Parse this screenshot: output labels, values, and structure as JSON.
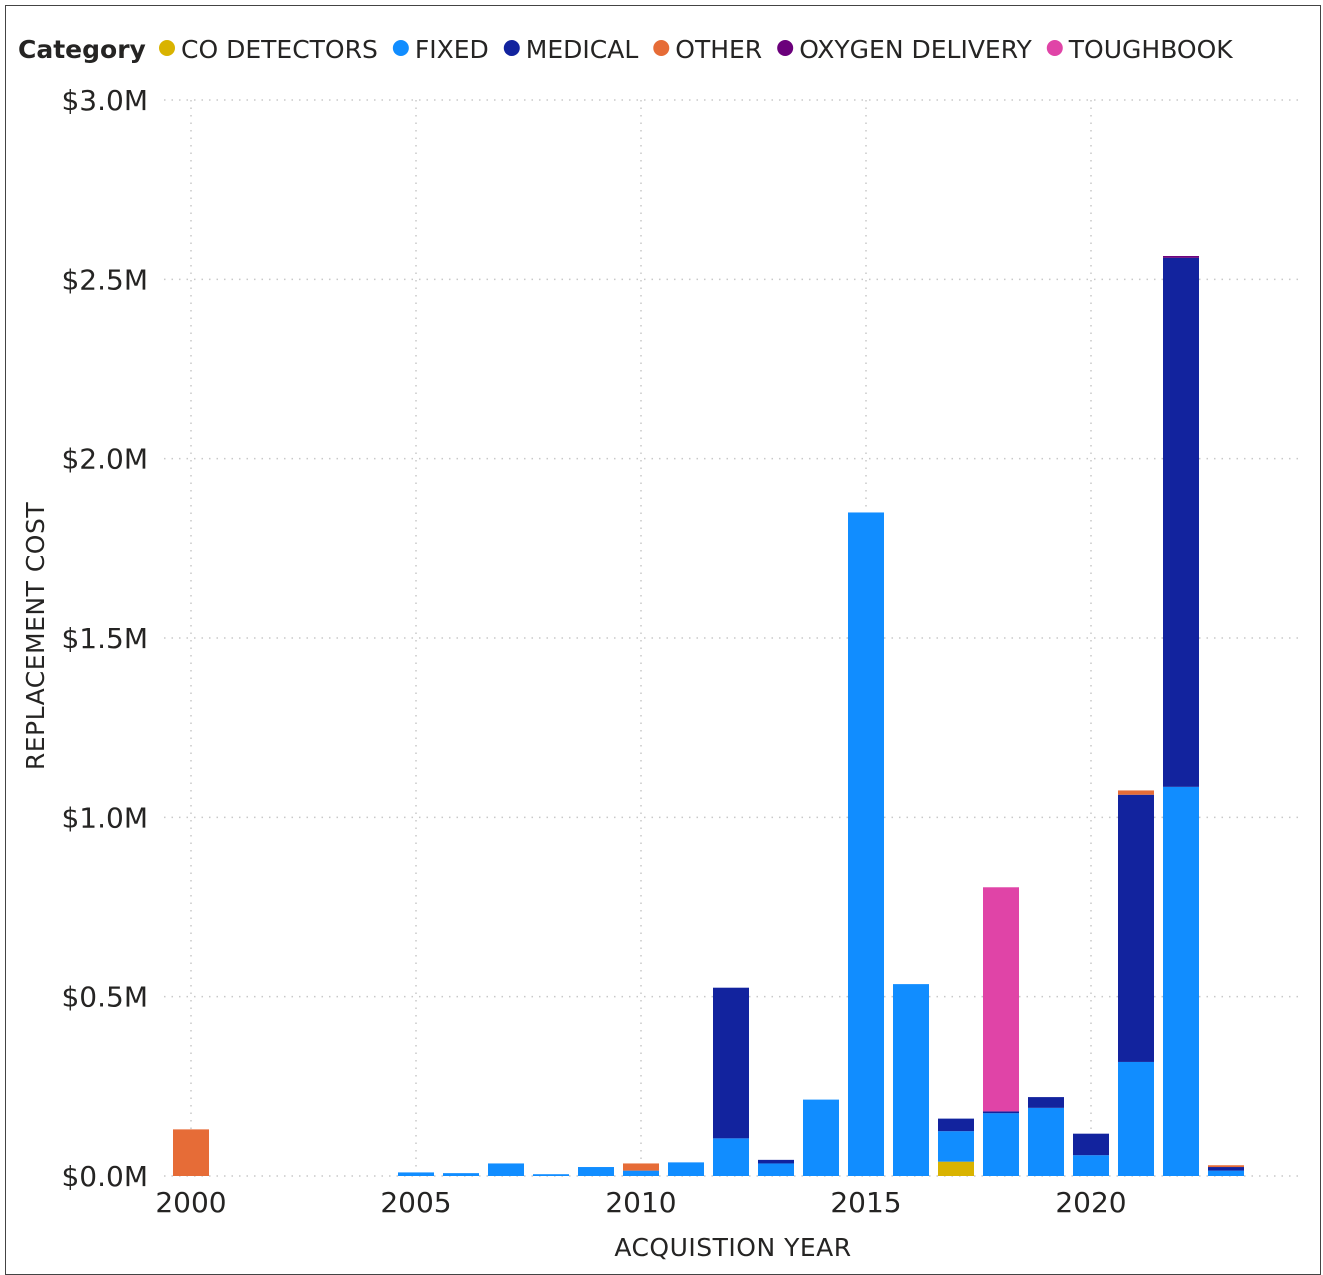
{
  "chart_data": {
    "type": "bar",
    "stacked": true,
    "legend": {
      "title": "Category",
      "position": "top-left",
      "entries": [
        {
          "name": "CO DETECTORS",
          "color": "#D9B300"
        },
        {
          "name": "FIXED",
          "color": "#118DFF"
        },
        {
          "name": "MEDICAL",
          "color": "#12239E"
        },
        {
          "name": "OTHER",
          "color": "#E66C37"
        },
        {
          "name": "OXYGEN DELIVERY",
          "color": "#6B007B"
        },
        {
          "name": "TOUGHBOOK",
          "color": "#E044A7"
        }
      ]
    },
    "xlabel": "ACQUISTION YEAR",
    "ylabel": "REPLACEMENT COST",
    "x_ticks": [
      2000,
      2005,
      2010,
      2015,
      2020
    ],
    "x_tick_labels": [
      "2000",
      "2005",
      "2010",
      "2015",
      "2020"
    ],
    "y_ticks": [
      0,
      0.5,
      1.0,
      1.5,
      2.0,
      2.5,
      3.0
    ],
    "y_tick_labels": [
      "$0.0M",
      "$0.5M",
      "$1.0M",
      "$1.5M",
      "$2.0M",
      "$2.5M",
      "$3.0M"
    ],
    "xlim": [
      1999.4,
      2024.6
    ],
    "ylim": [
      0,
      3.0
    ],
    "unit": "$M",
    "grid": true,
    "stack_order": [
      "CO DETECTORS",
      "FIXED",
      "MEDICAL",
      "OTHER",
      "OXYGEN DELIVERY",
      "TOUGHBOOK"
    ],
    "x": [
      2000,
      2005,
      2006,
      2007,
      2008,
      2009,
      2010,
      2011,
      2012,
      2013,
      2014,
      2015,
      2016,
      2017,
      2018,
      2019,
      2020,
      2021,
      2022,
      2023
    ],
    "series": [
      {
        "name": "CO DETECTORS",
        "values": [
          0,
          0,
          0,
          0,
          0,
          0,
          0,
          0,
          0,
          0,
          0,
          0,
          0,
          0.04,
          0,
          0,
          0,
          0,
          0,
          0
        ]
      },
      {
        "name": "FIXED",
        "values": [
          0,
          0.01,
          0.008,
          0.035,
          0.005,
          0.025,
          0.015,
          0.038,
          0.105,
          0.035,
          0.213,
          1.85,
          0.535,
          0.085,
          0.175,
          0.19,
          0.058,
          0.318,
          1.085,
          0.015
        ]
      },
      {
        "name": "MEDICAL",
        "values": [
          0,
          0,
          0,
          0,
          0,
          0,
          0,
          0,
          0.42,
          0.01,
          0,
          0,
          0,
          0.035,
          0.005,
          0.03,
          0.06,
          0.745,
          1.475,
          0.01
        ]
      },
      {
        "name": "OTHER",
        "values": [
          0.13,
          0,
          0,
          0,
          0,
          0,
          0.02,
          0,
          0,
          0,
          0,
          0,
          0,
          0,
          0,
          0,
          0,
          0.012,
          0,
          0.005
        ]
      },
      {
        "name": "OXYGEN DELIVERY",
        "values": [
          0,
          0,
          0,
          0,
          0,
          0,
          0,
          0,
          0,
          0,
          0,
          0,
          0,
          0,
          0,
          0,
          0,
          0,
          0.005,
          0
        ]
      },
      {
        "name": "TOUGHBOOK",
        "values": [
          0,
          0,
          0,
          0,
          0,
          0,
          0,
          0,
          0,
          0,
          0,
          0,
          0,
          0,
          0.625,
          0,
          0,
          0,
          0,
          0
        ]
      }
    ]
  }
}
